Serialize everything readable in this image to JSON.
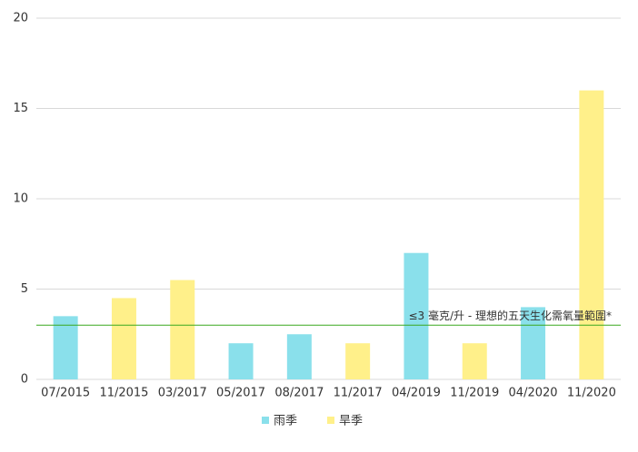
{
  "chart_data": {
    "type": "bar",
    "categories": [
      "07/2015",
      "11/2015",
      "03/2017",
      "05/2017",
      "08/2017",
      "11/2017",
      "04/2019",
      "11/2019",
      "04/2020",
      "11/2020"
    ],
    "series": [
      {
        "name": "雨季",
        "color": "#8ae0eb",
        "values": [
          3.5,
          null,
          null,
          2,
          2.5,
          null,
          7,
          null,
          4,
          null
        ]
      },
      {
        "name": "旱季",
        "color": "#fff08a",
        "values": [
          null,
          4.5,
          5.5,
          null,
          null,
          2,
          null,
          2,
          null,
          16
        ]
      }
    ],
    "ylim": [
      0,
      20
    ],
    "yticks": [
      0,
      5,
      10,
      15,
      20
    ],
    "grid": true,
    "reference_line": {
      "value": 3,
      "label": "≤3 毫克/升 - 理想的五天生化需氧量範圍*",
      "color": "#3aa81e"
    },
    "legend": "bottom"
  }
}
